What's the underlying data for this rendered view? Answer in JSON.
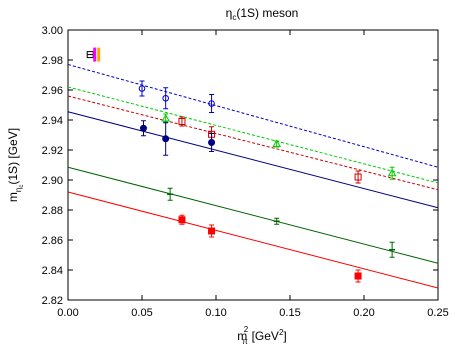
{
  "chart_data": {
    "type": "scatter",
    "title": {
      "main": "η",
      "sub": "c",
      "rest": "(1S) meson"
    },
    "xlabel": {
      "base": "m",
      "sub": "π",
      "sup": "2",
      "rest": " [GeV",
      "rest_sup": "2",
      "close": "]"
    },
    "ylabel": {
      "base": "m",
      "sub": "η",
      "subsub": "c",
      "rest": "(1S) [GeV]"
    },
    "xlim": [
      0.0,
      0.25
    ],
    "ylim": [
      2.82,
      3.0
    ],
    "xticks": [
      "0.00",
      "0.05",
      "0.10",
      "0.15",
      "0.20",
      "0.25"
    ],
    "yticks": [
      "2.82",
      "2.84",
      "2.86",
      "2.88",
      "2.90",
      "2.92",
      "2.94",
      "2.96",
      "2.98",
      "3.00"
    ],
    "grid": false,
    "experiment": {
      "x": 0.015,
      "y": 2.9836,
      "yerr": 0.0007,
      "bars": [
        "#ff00ff",
        "#ffa500"
      ]
    },
    "series": [
      {
        "color": "#0000cc",
        "marker": "circle-open",
        "line": "dashed",
        "fit": [
          [
            0.0,
            2.977
          ],
          [
            0.25,
            2.9085
          ]
        ],
        "points": [
          {
            "x": 0.05,
            "y": 2.961,
            "yerr": 0.005
          },
          {
            "x": 0.066,
            "y": 2.9545,
            "yerr": 0.007
          },
          {
            "x": 0.097,
            "y": 2.951,
            "yerr": 0.006
          }
        ]
      },
      {
        "color": "#00cc00",
        "marker": "triangle-open",
        "line": "dashed",
        "fit": [
          [
            0.0,
            2.962
          ],
          [
            0.25,
            2.898
          ]
        ],
        "points": [
          {
            "x": 0.066,
            "y": 2.941,
            "yerr": 0.003
          },
          {
            "x": 0.141,
            "y": 2.924,
            "yerr": 0.002
          },
          {
            "x": 0.219,
            "y": 2.9045,
            "yerr": 0.004
          }
        ]
      },
      {
        "color": "#cc0000",
        "marker": "square-open",
        "line": "dashed",
        "fit": [
          [
            0.0,
            2.956
          ],
          [
            0.25,
            2.8935
          ]
        ],
        "points": [
          {
            "x": 0.077,
            "y": 2.939,
            "yerr": 0.003
          },
          {
            "x": 0.097,
            "y": 2.9305,
            "yerr": 0.005
          },
          {
            "x": 0.196,
            "y": 2.902,
            "yerr": 0.004
          }
        ]
      },
      {
        "color": "#000080",
        "marker": "circle",
        "line": "solid",
        "fit": [
          [
            0.0,
            2.9455
          ],
          [
            0.25,
            2.8815
          ]
        ],
        "points": [
          {
            "x": 0.051,
            "y": 2.9345,
            "yerr": 0.005
          },
          {
            "x": 0.066,
            "y": 2.9275,
            "yerr": 0.011
          },
          {
            "x": 0.097,
            "y": 2.925,
            "yerr": 0.006
          }
        ]
      },
      {
        "color": "#006400",
        "marker": "cross",
        "line": "solid",
        "fit": [
          [
            0.0,
            2.9085
          ],
          [
            0.25,
            2.8445
          ]
        ],
        "points": [
          {
            "x": 0.069,
            "y": 2.8905,
            "yerr": 0.004
          },
          {
            "x": 0.141,
            "y": 2.8725,
            "yerr": 0.002
          },
          {
            "x": 0.219,
            "y": 2.8535,
            "yerr": 0.005
          }
        ]
      },
      {
        "color": "#ff0000",
        "marker": "square",
        "line": "solid",
        "fit": [
          [
            0.0,
            2.892
          ],
          [
            0.25,
            2.828
          ]
        ],
        "points": [
          {
            "x": 0.077,
            "y": 2.8735,
            "yerr": 0.003
          },
          {
            "x": 0.097,
            "y": 2.866,
            "yerr": 0.004
          },
          {
            "x": 0.196,
            "y": 2.836,
            "yerr": 0.004
          }
        ]
      }
    ]
  }
}
